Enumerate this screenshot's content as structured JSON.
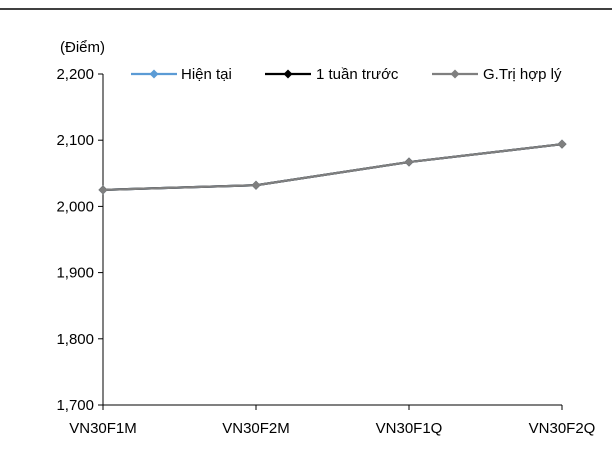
{
  "chart_data": {
    "type": "line",
    "unit_label": "(Điểm)",
    "categories": [
      "VN30F1M",
      "VN30F2M",
      "VN30F1Q",
      "VN30F2Q"
    ],
    "ylim": [
      1700,
      2200
    ],
    "yticks": [
      1700,
      1800,
      1900,
      2000,
      2100,
      2200
    ],
    "ytick_labels": [
      "1,700",
      "1,800",
      "1,900",
      "2,000",
      "2,100",
      "2,200"
    ],
    "grid": false,
    "legend_position": "top",
    "series": [
      {
        "name": "Hiện tại",
        "color": "#5b9bd5",
        "marker": "diamond",
        "values": [
          2025,
          2032,
          2067,
          2094
        ]
      },
      {
        "name": "1 tuần trước",
        "color": "#000000",
        "marker": "diamond",
        "values": [
          2025,
          2032,
          2067,
          2094
        ]
      },
      {
        "name": "G.Trị hợp lý",
        "color": "#7f7f7f",
        "marker": "diamond",
        "values": [
          2025,
          2032,
          2067,
          2094
        ]
      }
    ]
  }
}
